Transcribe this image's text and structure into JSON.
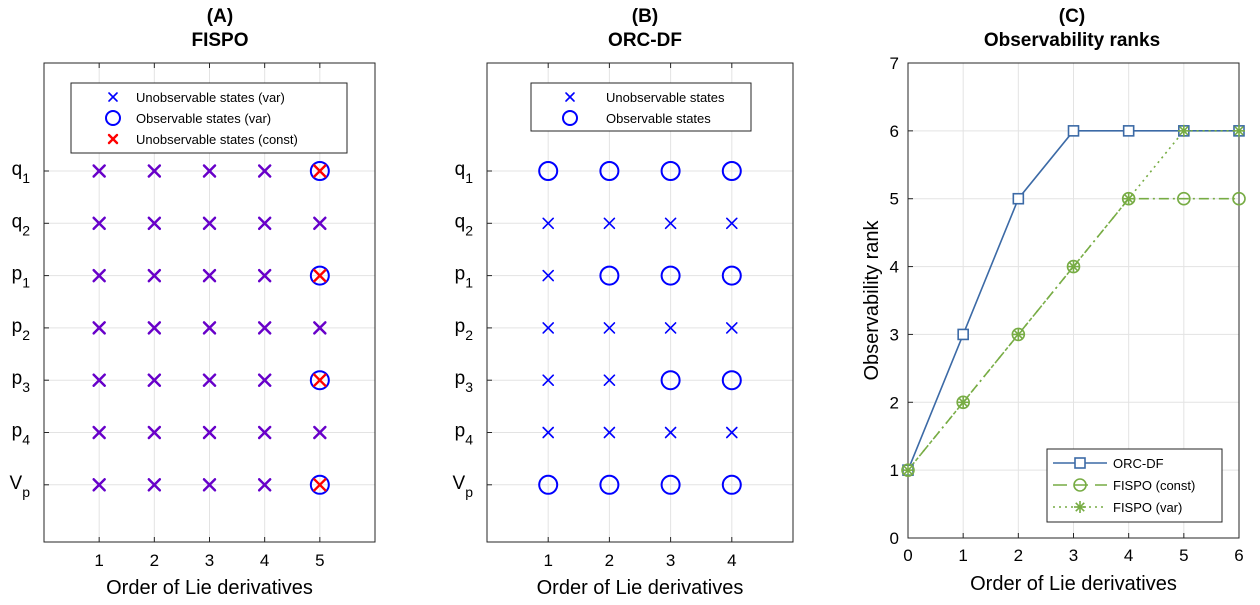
{
  "panels": {
    "a": {
      "letter": "(A)",
      "title": "FISPO"
    },
    "b": {
      "letter": "(B)",
      "title": "ORC-DF"
    },
    "c": {
      "letter": "(C)",
      "title": "Observability ranks"
    }
  },
  "colors": {
    "blue": "#0000ff",
    "red": "#ff0000",
    "purple": "#6a00c8",
    "orc": "#3c6aa6",
    "fispo": "#77ac44",
    "grid": "#e3e3e3"
  },
  "chart_data": [
    {
      "type": "scatter",
      "title": "FISPO",
      "xlabel": "Order of Lie derivatives",
      "ylabel": "",
      "x": [
        1,
        2,
        3,
        4,
        5
      ],
      "states": [
        "q_1",
        "q_2",
        "p_1",
        "p_2",
        "p_3",
        "p_4",
        "V_p"
      ],
      "legend": {
        "position": "top",
        "entries": [
          {
            "label": "Unobservable states (var)",
            "marker": "x",
            "color": "blue"
          },
          {
            "label": "Observable states (var)",
            "marker": "o",
            "color": "blue"
          },
          {
            "label": "Unobservable states (const)",
            "marker": "x",
            "color": "red"
          }
        ]
      },
      "grid": true,
      "observable_var": [
        [],
        [],
        [],
        [],
        [
          "q_1",
          "p_1",
          "p_3",
          "V_p"
        ]
      ],
      "unobservable_var": [
        [
          "q_1",
          "q_2",
          "p_1",
          "p_2",
          "p_3",
          "p_4",
          "V_p"
        ],
        [
          "q_1",
          "q_2",
          "p_1",
          "p_2",
          "p_3",
          "p_4",
          "V_p"
        ],
        [
          "q_1",
          "q_2",
          "p_1",
          "p_2",
          "p_3",
          "p_4",
          "V_p"
        ],
        [
          "q_1",
          "q_2",
          "p_1",
          "p_2",
          "p_3",
          "p_4",
          "V_p"
        ],
        [
          "q_2",
          "p_2",
          "p_4"
        ]
      ],
      "unobservable_const": [
        [
          "q_1",
          "q_2",
          "p_1",
          "p_2",
          "p_3",
          "p_4",
          "V_p"
        ],
        [
          "q_1",
          "q_2",
          "p_1",
          "p_2",
          "p_3",
          "p_4",
          "V_p"
        ],
        [
          "q_1",
          "q_2",
          "p_1",
          "p_2",
          "p_3",
          "p_4",
          "V_p"
        ],
        [
          "q_1",
          "q_2",
          "p_1",
          "p_2",
          "p_3",
          "p_4",
          "V_p"
        ],
        [
          "q_1",
          "q_2",
          "p_1",
          "p_2",
          "p_3",
          "p_4",
          "V_p"
        ]
      ]
    },
    {
      "type": "scatter",
      "title": "ORC-DF",
      "xlabel": "Order of Lie derivatives",
      "ylabel": "",
      "x": [
        1,
        2,
        3,
        4
      ],
      "states": [
        "q_1",
        "q_2",
        "p_1",
        "p_2",
        "p_3",
        "p_4",
        "V_p"
      ],
      "legend": {
        "position": "top",
        "entries": [
          {
            "label": "Unobservable states",
            "marker": "x",
            "color": "blue"
          },
          {
            "label": "Observable states",
            "marker": "o",
            "color": "blue"
          }
        ]
      },
      "grid": true,
      "observable": [
        [
          "q_1",
          "V_p"
        ],
        [
          "q_1",
          "p_1",
          "V_p"
        ],
        [
          "q_1",
          "p_1",
          "p_3",
          "V_p"
        ],
        [
          "q_1",
          "p_1",
          "p_3",
          "V_p"
        ]
      ]
    },
    {
      "type": "line",
      "title": "Observability ranks",
      "xlabel": "Order of Lie derivatives",
      "ylabel": "Observability rank",
      "xlim": [
        0,
        6
      ],
      "ylim": [
        0,
        7
      ],
      "xticks": [
        0,
        1,
        2,
        3,
        4,
        5,
        6
      ],
      "yticks": [
        0,
        1,
        2,
        3,
        4,
        5,
        6,
        7
      ],
      "grid": true,
      "legend_position": "bottom-right",
      "series": [
        {
          "name": "ORC-DF",
          "x": [
            0,
            1,
            2,
            3,
            4,
            5,
            6
          ],
          "values": [
            1,
            3,
            5,
            6,
            6,
            6,
            6
          ],
          "color": "orc",
          "dash": "solid",
          "marker": "square"
        },
        {
          "name": "FISPO (const)",
          "x": [
            0,
            1,
            2,
            3,
            4,
            5,
            6
          ],
          "values": [
            1,
            2,
            3,
            4,
            5,
            5,
            5
          ],
          "color": "fispo",
          "dash": "dashed",
          "marker": "circle"
        },
        {
          "name": "FISPO (var)",
          "x": [
            0,
            1,
            2,
            3,
            4,
            5,
            6
          ],
          "values": [
            1,
            2,
            3,
            4,
            5,
            6,
            6
          ],
          "color": "fispo",
          "dash": "dotted",
          "marker": "asterisk"
        }
      ]
    }
  ]
}
